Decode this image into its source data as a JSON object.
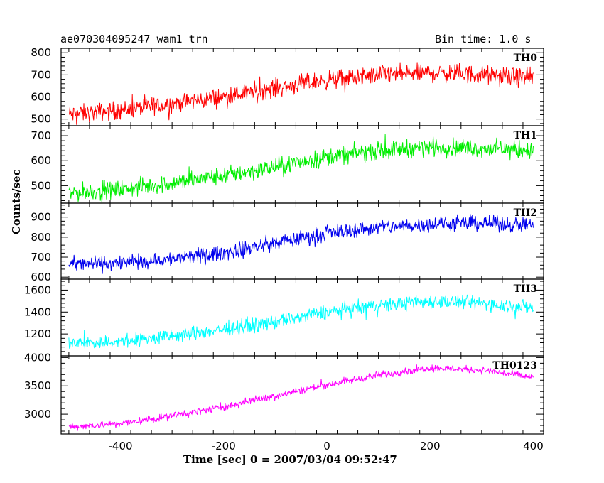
{
  "header": {
    "title": "ae070304095247_wam1_trn",
    "bin_time": "Bin time: 1.0 s"
  },
  "axes": {
    "xlabel": "Time [sec] 0 = 2007/03/04 09:52:47",
    "ylabel": "Counts/sec"
  },
  "chart_data": {
    "type": "line",
    "x_range": [
      -515,
      420
    ],
    "x_ticks": [
      -400,
      -200,
      0,
      200,
      400
    ],
    "x_data_range": [
      -500,
      400
    ],
    "panels": [
      {
        "name": "TH0",
        "color": "#ff0000",
        "ylim": [
          470,
          820
        ],
        "yticks": [
          500,
          600,
          700,
          800
        ],
        "trend_x": [
          -500,
          -400,
          -300,
          -200,
          -100,
          0,
          100,
          200,
          300,
          400
        ],
        "trend_y": [
          520,
          540,
          570,
          600,
          640,
          675,
          700,
          710,
          700,
          685
        ],
        "noise": 35
      },
      {
        "name": "TH1",
        "color": "#00ee00",
        "ylim": [
          430,
          740
        ],
        "yticks": [
          500,
          600,
          700
        ],
        "trend_x": [
          -500,
          -400,
          -300,
          -200,
          -100,
          0,
          100,
          200,
          300,
          400
        ],
        "trend_y": [
          470,
          485,
          510,
          540,
          575,
          615,
          640,
          655,
          650,
          640
        ],
        "noise": 30
      },
      {
        "name": "TH2",
        "color": "#0000ee",
        "ylim": [
          590,
          970
        ],
        "yticks": [
          600,
          700,
          800,
          900
        ],
        "trend_x": [
          -500,
          -400,
          -300,
          -200,
          -100,
          0,
          100,
          200,
          300,
          400
        ],
        "trend_y": [
          665,
          670,
          690,
          720,
          770,
          820,
          850,
          865,
          870,
          860
        ],
        "noise": 32
      },
      {
        "name": "TH3",
        "color": "#00ffff",
        "ylim": [
          1000,
          1700
        ],
        "yticks": [
          1200,
          1400,
          1600
        ],
        "trend_x": [
          -500,
          -400,
          -300,
          -200,
          -100,
          0,
          100,
          200,
          300,
          400
        ],
        "trend_y": [
          1110,
          1130,
          1180,
          1240,
          1310,
          1400,
          1460,
          1500,
          1480,
          1440
        ],
        "noise": 55
      },
      {
        "name": "TH0123",
        "color": "#ff00ff",
        "ylim": [
          2650,
          4030
        ],
        "yticks": [
          3000,
          3500,
          4000
        ],
        "trend_x": [
          -500,
          -400,
          -300,
          -200,
          -100,
          0,
          100,
          200,
          300,
          400
        ],
        "trend_y": [
          2780,
          2830,
          2970,
          3130,
          3330,
          3520,
          3690,
          3820,
          3780,
          3650
        ],
        "noise": 55
      }
    ]
  }
}
